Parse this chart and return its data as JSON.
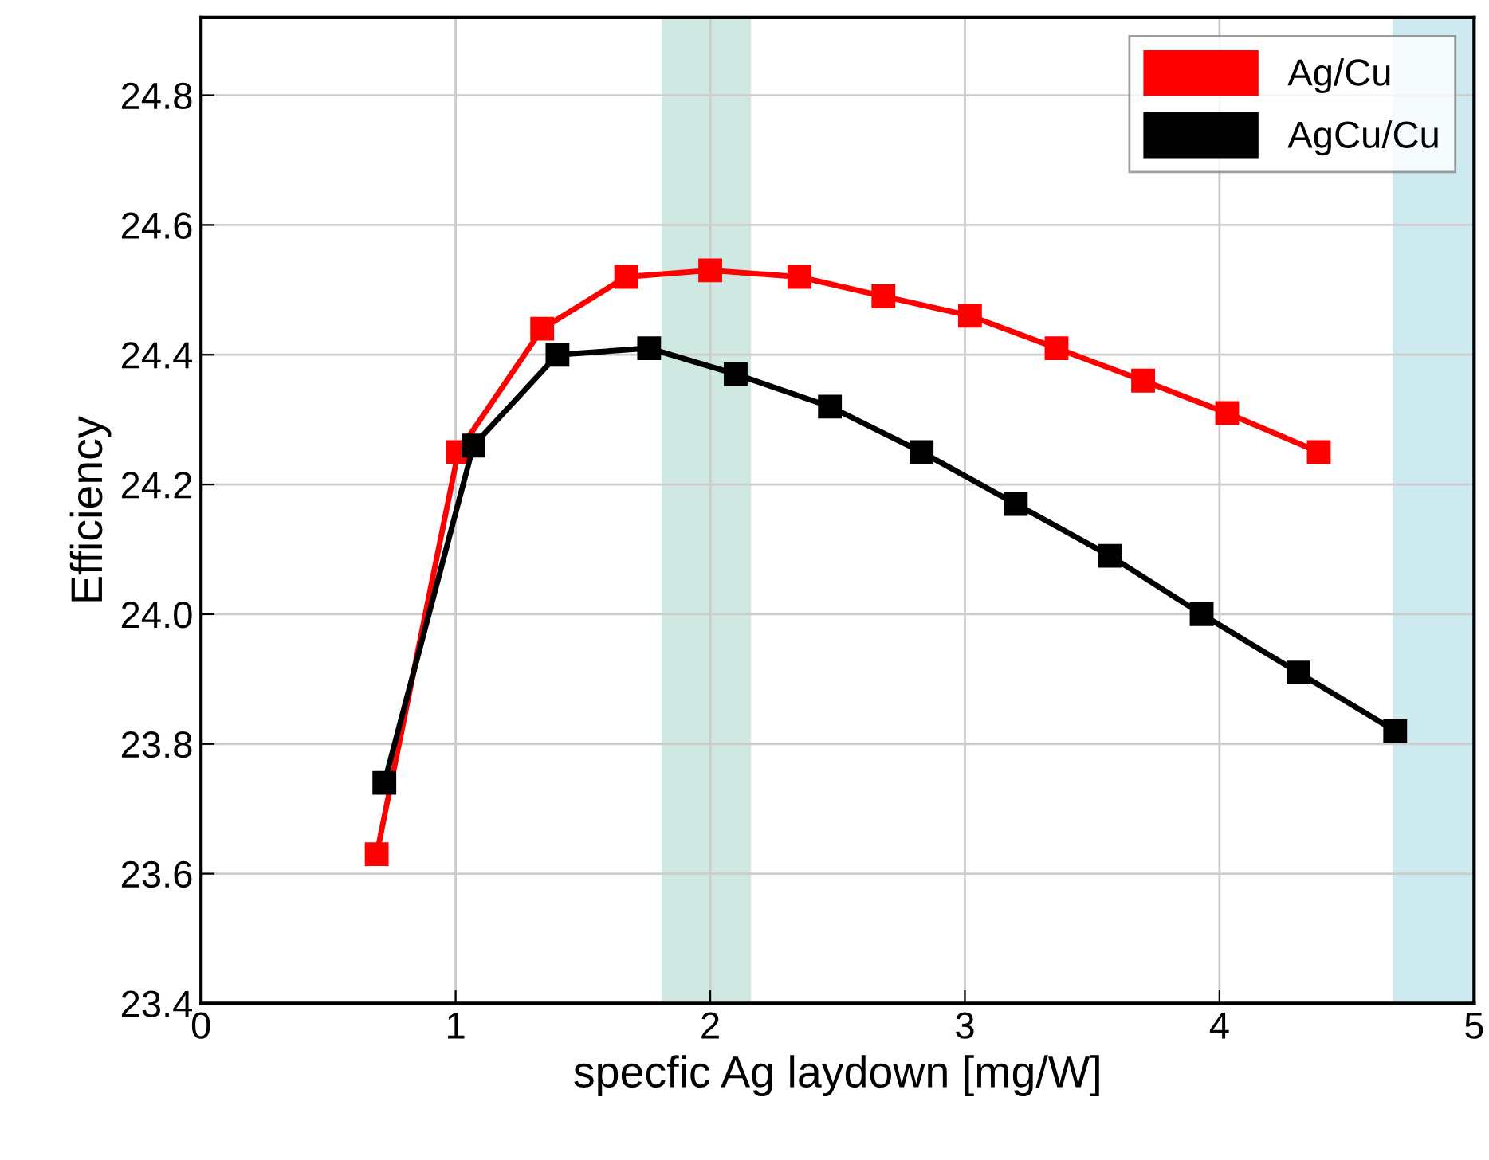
{
  "chart_data": {
    "type": "line",
    "xlabel": "specfic Ag laydown [mg/W]",
    "ylabel": "Efficiency",
    "xlim": [
      0,
      5
    ],
    "xticks": [
      0,
      1,
      2,
      3,
      4,
      5
    ],
    "ylim": [
      23.4,
      24.92
    ],
    "yticks": [
      23.4,
      23.6,
      23.8,
      {
        "value": 24.0,
        "label": "24.0"
      },
      24.2,
      24.4,
      24.6,
      24.8
    ],
    "grid": true,
    "legend": "top right",
    "marker": "square",
    "line_style": "solid",
    "bands": [
      {
        "axis": "x",
        "from": 1.81,
        "to": 2.16,
        "color": "#cfe8e2"
      },
      {
        "axis": "x",
        "from": 4.68,
        "to": 5.0,
        "color": "#cdeaf0"
      }
    ],
    "series": [
      {
        "name": "Ag/Cu",
        "color": "#ff0000",
        "x": [
          0.69,
          1.01,
          1.34,
          1.67,
          2.0,
          2.35,
          2.68,
          3.02,
          3.36,
          3.7,
          4.03,
          4.39
        ],
        "values": [
          23.63,
          24.25,
          24.44,
          24.52,
          24.53,
          24.52,
          24.49,
          24.46,
          24.41,
          24.36,
          24.31,
          24.25
        ]
      },
      {
        "name": "AgCu/Cu",
        "color": "#000000",
        "x": [
          0.72,
          1.07,
          1.4,
          1.76,
          2.1,
          2.47,
          2.83,
          3.2,
          3.57,
          3.93,
          4.31,
          4.69
        ],
        "values": [
          23.74,
          24.26,
          24.4,
          24.41,
          24.37,
          24.32,
          24.25,
          24.17,
          24.09,
          24.0,
          23.91,
          23.82
        ]
      }
    ]
  }
}
